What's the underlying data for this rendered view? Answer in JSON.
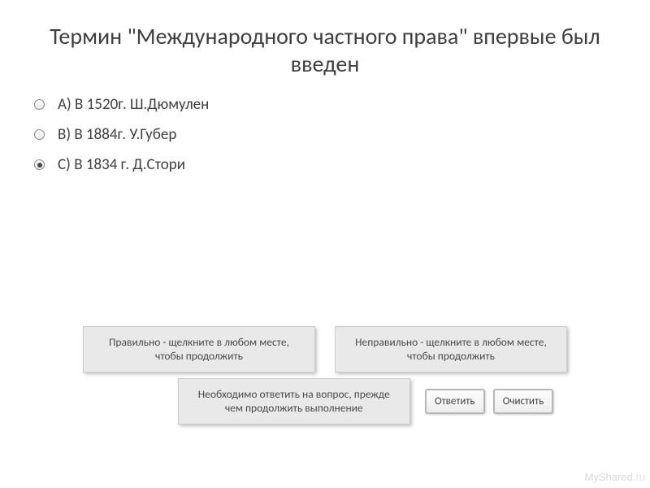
{
  "title": "Термин \"Международного частного права\" впервые был введен",
  "options": [
    {
      "label": "A)  В 1520г. Ш.Дюмулен",
      "selected": false
    },
    {
      "label": "B)  В 1884г. У.Губер",
      "selected": false
    },
    {
      "label": "C)  В 1834 г. Д.Стори",
      "selected": true
    }
  ],
  "feedback": {
    "correct": "Правильно - щелкните в любом месте, чтобы продолжить",
    "incorrect": "Неправильно - щелкните в любом месте, чтобы продолжить"
  },
  "prompt": "Необходимо ответить на вопрос, прежде чем продолжить выполнение",
  "buttons": {
    "submit": "Ответить",
    "clear": "Очистить"
  },
  "watermark": {
    "brand": "MyShared",
    "tld": ".ru"
  },
  "colors": {
    "background": "#ffffff",
    "text": "#3f3f3f",
    "box_bg": "#e9e9e9",
    "box_border": "#cccccc",
    "btn_border": "#b8b8b8",
    "watermark": "#d9d9d9"
  },
  "typography": {
    "title_fontsize": 28,
    "option_fontsize": 19,
    "box_fontsize": 13.5,
    "btn_fontsize": 13
  }
}
